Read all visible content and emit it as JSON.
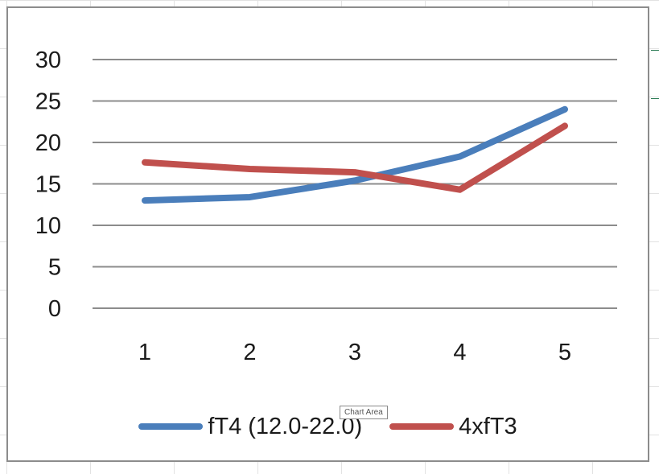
{
  "tooltip": "Chart Area",
  "chart_data": {
    "type": "line",
    "categories": [
      "1",
      "2",
      "3",
      "4",
      "5"
    ],
    "ylim": [
      0,
      30
    ],
    "yticks": [
      "0",
      "5",
      "10",
      "15",
      "20",
      "25",
      "30"
    ],
    "grid": true,
    "legend_position": "bottom",
    "series": [
      {
        "name": "fT4 (12.0-22.0)",
        "color": "#4a7ebb",
        "values": [
          13.0,
          13.4,
          15.4,
          18.3,
          24.0
        ]
      },
      {
        "name": "4xfT3",
        "color": "#c0504d",
        "values": [
          17.6,
          16.8,
          16.4,
          14.3,
          22.0
        ]
      }
    ]
  }
}
